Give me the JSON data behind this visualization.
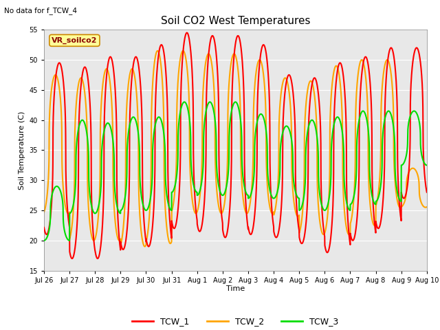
{
  "title": "Soil CO2 West Temperatures",
  "no_data_note": "No data for f_TCW_4",
  "legend_box_label": "VR_soilco2",
  "xlabel": "Time",
  "ylabel": "Soil Temperature (C)",
  "ylim": [
    15,
    55
  ],
  "yticks": [
    15,
    20,
    25,
    30,
    35,
    40,
    45,
    50,
    55
  ],
  "xtick_labels": [
    "Jul 26",
    "Jul 27",
    "Jul 28",
    "Jul 29",
    "Jul 30",
    "Jul 31",
    "Aug 1",
    "Aug 2",
    "Aug 3",
    "Aug 4",
    "Aug 5",
    "Aug 6",
    "Aug 7",
    "Aug 8",
    "Aug 9",
    "Aug 10"
  ],
  "colors": {
    "TCW_1": "#FF0000",
    "TCW_2": "#FFA500",
    "TCW_3": "#00DD00",
    "background": "#E8E8E8",
    "legend_box_bg": "#FFFF99",
    "legend_box_edge": "#CC8800"
  },
  "line_width": 1.5,
  "num_days": 15,
  "tcw1_peaks": [
    49.5,
    48.8,
    50.5,
    50.5,
    52.5,
    54.5,
    54.0,
    54.0,
    52.5,
    47.5,
    47.0,
    49.5,
    50.5,
    52.0,
    52.0
  ],
  "tcw1_troughs": [
    21.0,
    17.0,
    17.0,
    18.5,
    19.0,
    22.0,
    21.5,
    20.5,
    21.0,
    20.5,
    19.5,
    18.0,
    20.0,
    22.0,
    27.0
  ],
  "tcw2_peaks": [
    47.5,
    47.0,
    48.5,
    48.5,
    51.5,
    51.5,
    51.0,
    51.0,
    50.0,
    47.0,
    46.5,
    49.0,
    50.0,
    50.0,
    32.0
  ],
  "tcw2_troughs": [
    24.5,
    20.0,
    20.0,
    19.0,
    19.5,
    24.5,
    24.5,
    24.5,
    24.5,
    24.0,
    21.0,
    21.0,
    22.5,
    25.5,
    25.5
  ],
  "tcw3_peaks": [
    29.0,
    40.0,
    39.5,
    40.5,
    40.5,
    43.0,
    43.0,
    43.0,
    41.0,
    39.0,
    40.0,
    40.5,
    41.5,
    41.5,
    41.5
  ],
  "tcw3_troughs": [
    20.0,
    24.5,
    24.5,
    25.0,
    25.0,
    28.0,
    27.5,
    27.5,
    27.0,
    27.0,
    25.0,
    25.0,
    26.0,
    26.5,
    32.5
  ],
  "tcw1_phase": -0.4,
  "tcw2_phase": -0.55,
  "tcw3_phase": -1.5,
  "sharpness": 2.5
}
